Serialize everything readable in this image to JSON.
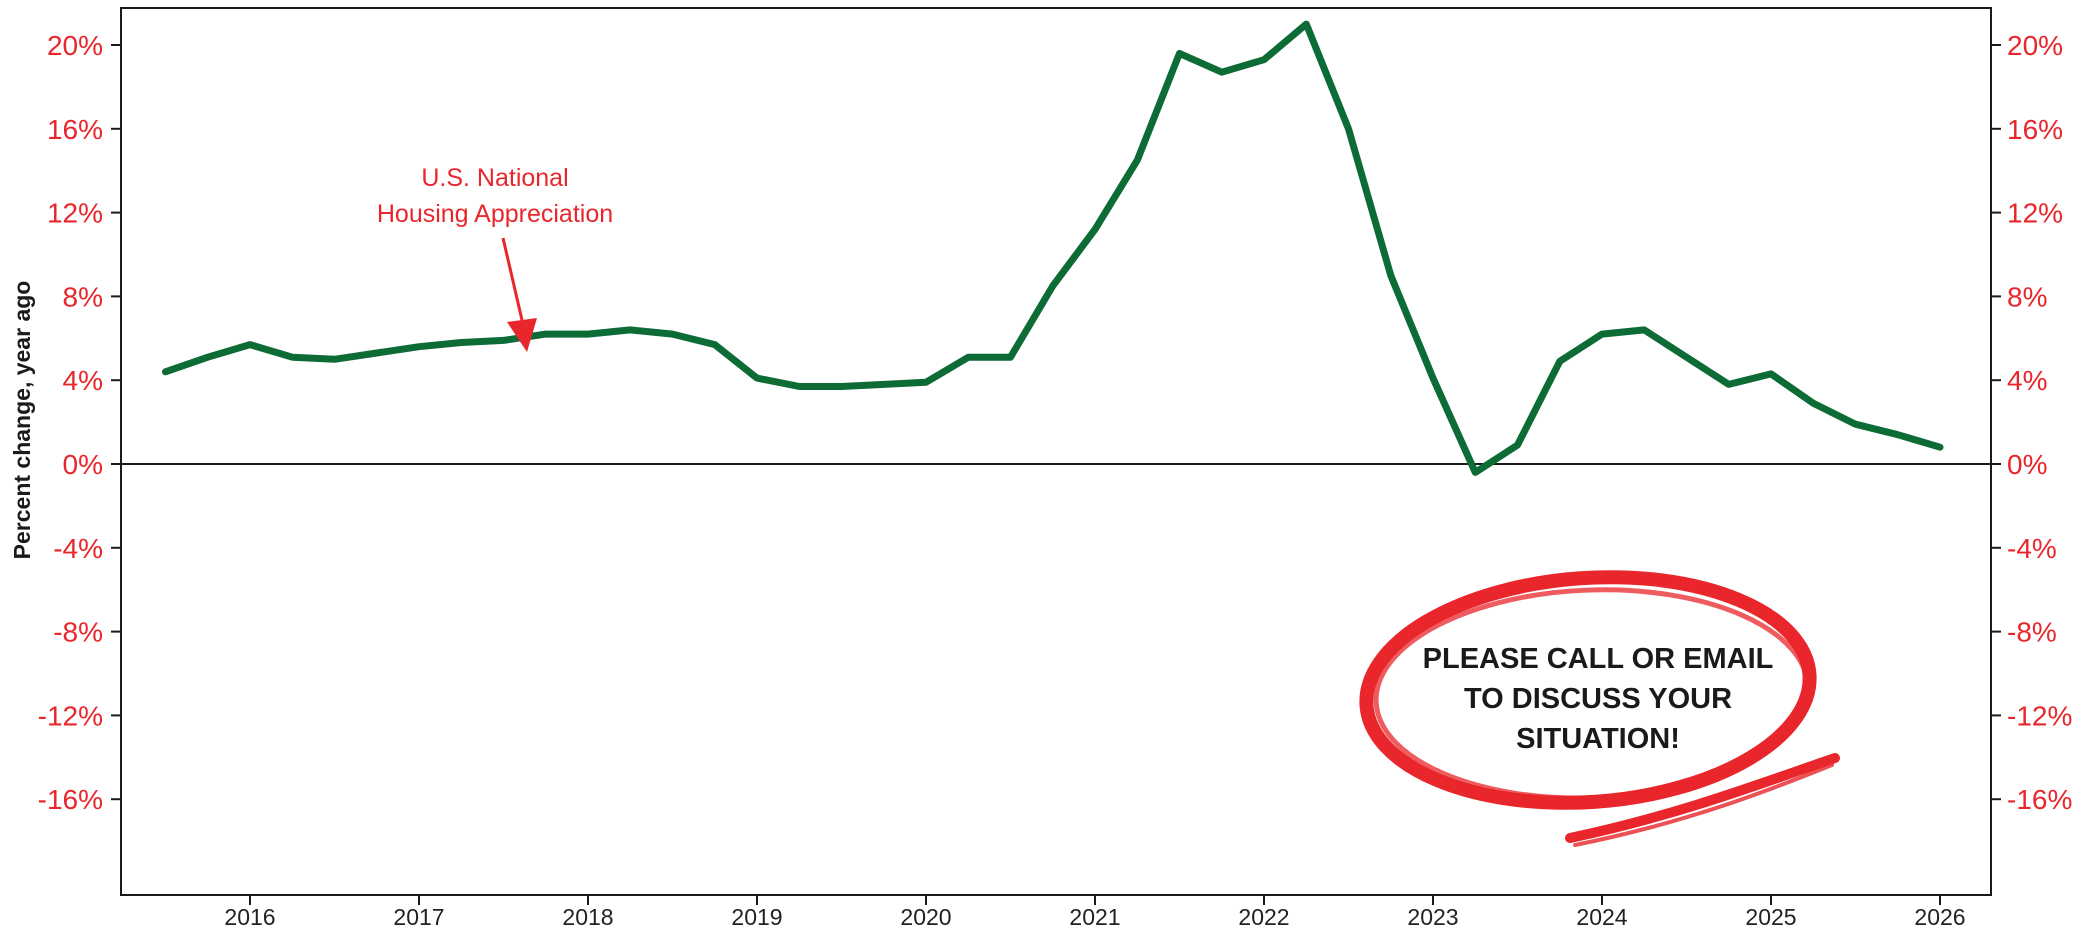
{
  "chart_data": {
    "type": "line",
    "ylabel": "Percent change, year ago",
    "ylim": [
      -17.5,
      21.5
    ],
    "xlim": [
      2015.25,
      2026.3
    ],
    "y_ticks": [
      20,
      16,
      12,
      8,
      4,
      0,
      -4,
      -8,
      -12,
      -16
    ],
    "y_tick_labels": [
      "20%",
      "16%",
      "12%",
      "8%",
      "4%",
      "0%",
      "-4%",
      "-8%",
      "-12%",
      "-16%"
    ],
    "x_ticks": [
      2016,
      2017,
      2018,
      2019,
      2020,
      2021,
      2022,
      2023,
      2024,
      2025,
      2026
    ],
    "x_tick_labels": [
      "2016",
      "2017",
      "2018",
      "2019",
      "2020",
      "2021",
      "2022",
      "2023",
      "2024",
      "2025",
      "2026"
    ],
    "grid": false,
    "secondary_y_axis_mirrored": true,
    "series": [
      {
        "name": "U.S. National Housing Appreciation",
        "color": "#0d6b36",
        "x": [
          2015.5,
          2015.75,
          2016.0,
          2016.25,
          2016.5,
          2016.75,
          2017.0,
          2017.25,
          2017.5,
          2017.75,
          2018.0,
          2018.25,
          2018.5,
          2018.75,
          2019.0,
          2019.25,
          2019.5,
          2019.75,
          2020.0,
          2020.25,
          2020.5,
          2020.75,
          2021.0,
          2021.25,
          2021.5,
          2021.75,
          2022.0,
          2022.25,
          2022.5,
          2022.75,
          2023.0,
          2023.25,
          2023.5,
          2023.75,
          2024.0,
          2024.25,
          2024.5,
          2024.75,
          2025.0,
          2025.25,
          2025.5,
          2025.75,
          2026.0
        ],
        "values": [
          4.4,
          5.1,
          5.7,
          5.1,
          5.0,
          5.3,
          5.6,
          5.8,
          5.9,
          6.2,
          6.2,
          6.4,
          6.2,
          5.7,
          4.1,
          3.7,
          3.7,
          3.8,
          3.9,
          5.1,
          5.1,
          8.5,
          11.2,
          14.5,
          19.6,
          18.7,
          19.3,
          21.0,
          16.0,
          9.0,
          4.1,
          -0.4,
          0.9,
          4.9,
          6.2,
          6.4,
          5.1,
          3.8,
          4.3,
          2.9,
          1.9,
          1.4,
          0.8
        ]
      }
    ],
    "annotations": {
      "series_label_line1": "U.S. National",
      "series_label_line2": "Housing Appreciation",
      "callout_line1": "PLEASE CALL OR EMAIL",
      "callout_line2": "TO DISCUSS YOUR",
      "callout_line3": "SITUATION!"
    },
    "colors": {
      "line": "#0d6b36",
      "accent": "#e8262b",
      "axis": "#1a1a1a",
      "tick_labels": "#e8262b"
    }
  }
}
